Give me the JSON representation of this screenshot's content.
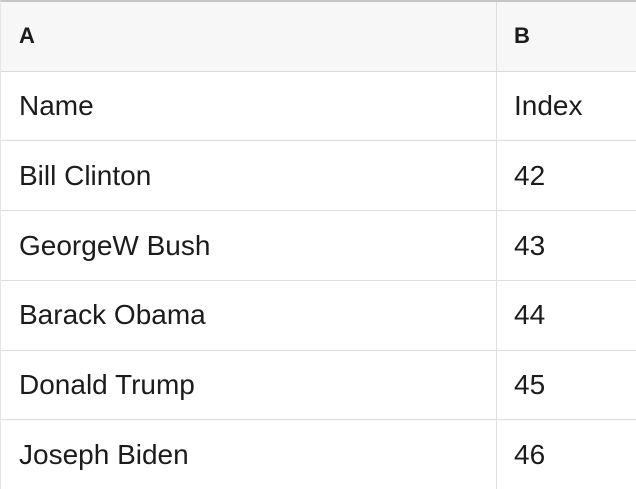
{
  "colors": {
    "background": "#ffffff",
    "header_background": "#f7f7f7",
    "grid_line": "#dedede",
    "top_border": "#c6c6c6",
    "left_border": "#e6e6e6",
    "text": "#1c1c1e"
  },
  "table": {
    "column_headers": [
      "A",
      "B"
    ],
    "rows": [
      {
        "a": "Name",
        "b": "Index"
      },
      {
        "a": "Bill Clinton",
        "b": "42"
      },
      {
        "a": "GeorgeW Bush",
        "b": "43"
      },
      {
        "a": "Barack Obama",
        "b": "44"
      },
      {
        "a": "Donald Trump",
        "b": "45"
      },
      {
        "a": "Joseph Biden",
        "b": "46"
      }
    ]
  }
}
